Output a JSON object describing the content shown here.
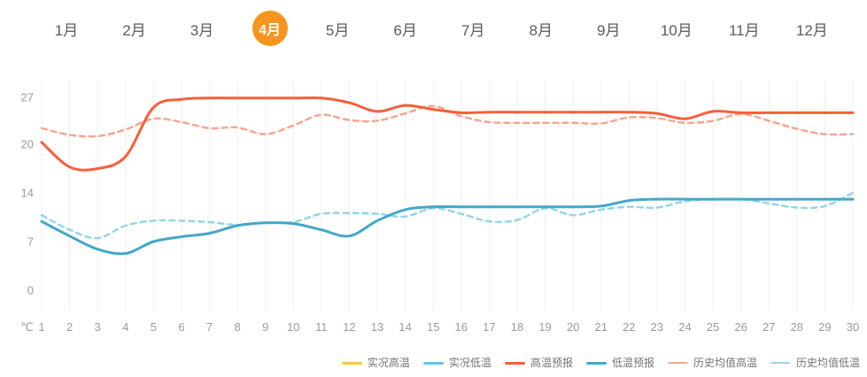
{
  "tabs": {
    "selected_color": "#f7941e",
    "items": [
      {
        "label": "1月",
        "selected": false
      },
      {
        "label": "2月",
        "selected": false
      },
      {
        "label": "3月",
        "selected": false
      },
      {
        "label": "4月",
        "selected": true
      },
      {
        "label": "5月",
        "selected": false
      },
      {
        "label": "6月",
        "selected": false
      },
      {
        "label": "7月",
        "selected": false
      },
      {
        "label": "8月",
        "selected": false
      },
      {
        "label": "9月",
        "selected": false
      },
      {
        "label": "10月",
        "selected": false
      },
      {
        "label": "11月",
        "selected": false
      },
      {
        "label": "12月",
        "selected": false
      }
    ]
  },
  "chart_data": {
    "type": "line",
    "title": "",
    "unit_label": "℃",
    "x": [
      1,
      2,
      3,
      4,
      5,
      6,
      7,
      8,
      9,
      10,
      11,
      12,
      13,
      14,
      15,
      16,
      17,
      18,
      19,
      20,
      21,
      22,
      23,
      24,
      25,
      26,
      27,
      28,
      29,
      30
    ],
    "yticks": [
      27,
      20,
      14,
      7,
      0
    ],
    "ylim": [
      0,
      27
    ],
    "grid": "vertical-only",
    "legend_position": "bottom-right",
    "series": [
      {
        "name": "实况高温",
        "color": "#f2cc3d",
        "style": "solid",
        "values": []
      },
      {
        "name": "实况低温",
        "color": "#5cc9e8",
        "style": "solid",
        "values": []
      },
      {
        "name": "高温预报",
        "color": "#f75f3b",
        "style": "solid",
        "values": [
          20.3,
          17.2,
          17.0,
          18.5,
          25.5,
          26.7,
          26.9,
          26.9,
          26.9,
          26.9,
          26.9,
          26.2,
          24.9,
          25.8,
          25.2,
          24.7,
          24.8,
          24.8,
          24.8,
          24.8,
          24.8,
          24.8,
          24.6,
          23.8,
          24.9,
          24.7,
          24.7,
          24.7,
          24.7,
          24.7
        ]
      },
      {
        "name": "低温预报",
        "color": "#44a7c9",
        "style": "solid",
        "values": [
          9.9,
          7.8,
          5.9,
          5.3,
          7.0,
          7.7,
          8.2,
          9.3,
          9.7,
          9.6,
          8.7,
          7.8,
          10.0,
          11.6,
          12.0,
          12.0,
          12.0,
          12.0,
          12.0,
          12.0,
          12.1,
          12.9,
          13.1,
          13.1,
          13.1,
          13.1,
          13.1,
          13.1,
          13.1,
          13.1
        ]
      },
      {
        "name": "历史均值高温",
        "color": "#f9a58f",
        "style": "dashed",
        "values": [
          22.4,
          21.4,
          21.2,
          22.2,
          23.8,
          23.3,
          22.4,
          22.5,
          21.5,
          22.8,
          24.4,
          23.6,
          23.5,
          24.6,
          25.7,
          24.2,
          23.3,
          23.2,
          23.2,
          23.2,
          23.1,
          24.0,
          23.9,
          23.2,
          23.5,
          24.5,
          23.5,
          22.3,
          21.5,
          21.5
        ]
      },
      {
        "name": "历史均值低温",
        "color": "#95d5eb",
        "style": "dashed",
        "values": [
          10.8,
          8.7,
          7.5,
          9.3,
          10.0,
          10.0,
          9.8,
          9.4,
          9.7,
          9.8,
          11.0,
          11.1,
          11.0,
          10.6,
          11.8,
          11.0,
          9.9,
          10.1,
          11.8,
          10.8,
          11.6,
          12.0,
          11.9,
          12.8,
          13.1,
          13.1,
          12.5,
          11.9,
          12.1,
          14.0
        ]
      }
    ]
  }
}
